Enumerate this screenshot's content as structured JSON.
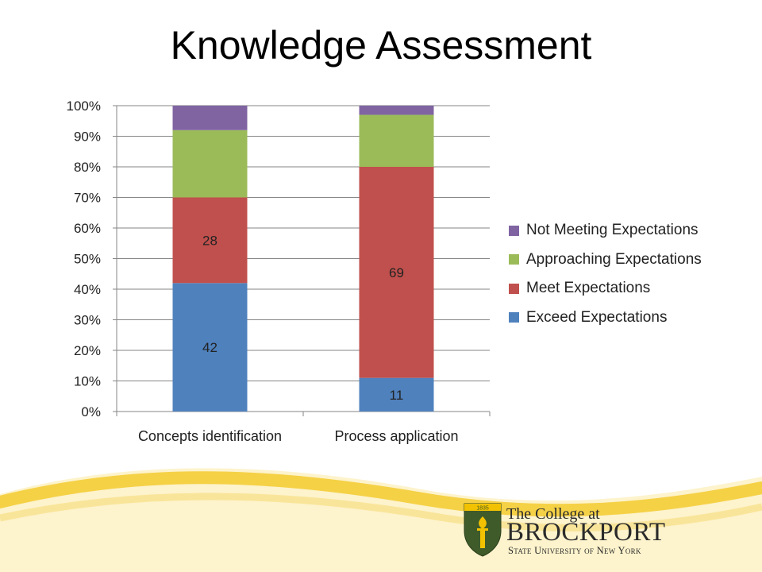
{
  "slide": {
    "title": "Knowledge Assessment"
  },
  "chart_data": {
    "type": "bar",
    "stacked": true,
    "percent_stacked": true,
    "categories": [
      "Concepts identification",
      "Process application"
    ],
    "series": [
      {
        "name": "Exceed Expectations",
        "values": [
          42,
          11
        ],
        "color": "#4f81bd",
        "labels": [
          "42",
          "11"
        ]
      },
      {
        "name": "Meet Expectations",
        "values": [
          28,
          69
        ],
        "color": "#c0504d",
        "labels": [
          "28",
          "69"
        ]
      },
      {
        "name": "Approaching Expectations",
        "values": [
          22,
          17
        ],
        "color": "#9bbb59",
        "labels": [
          "",
          ""
        ]
      },
      {
        "name": "Not Meeting Expectations",
        "values": [
          8,
          3
        ],
        "color": "#8064a2",
        "labels": [
          "",
          ""
        ]
      }
    ],
    "ylim": [
      0,
      100
    ],
    "yticks": [
      "0%",
      "10%",
      "20%",
      "30%",
      "40%",
      "50%",
      "60%",
      "70%",
      "80%",
      "90%",
      "100%"
    ],
    "grid": true,
    "legend": "right"
  },
  "logo": {
    "line1": "The College at",
    "line2": "BROCKPORT",
    "line3": "State University of New York",
    "badge_year": "1835",
    "colors": {
      "green": "#3f5b2a",
      "gold": "#f2c200"
    }
  }
}
